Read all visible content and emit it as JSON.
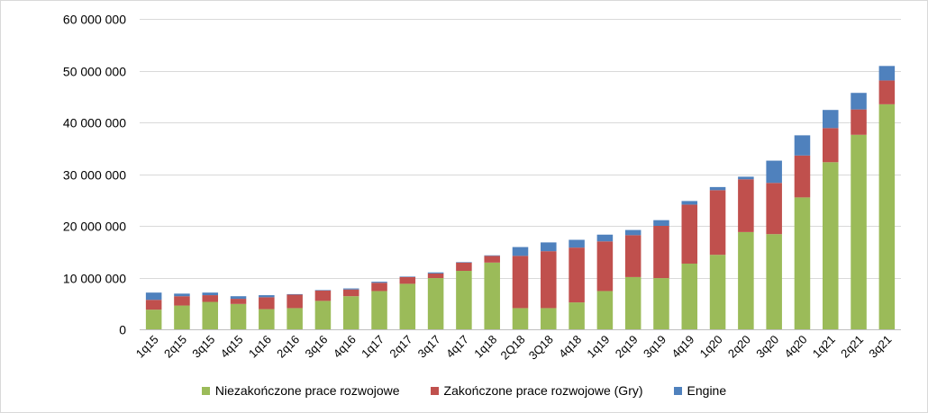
{
  "chart_data": {
    "type": "bar",
    "stacked": true,
    "title": "",
    "xlabel": "",
    "ylabel": "",
    "ylim": [
      0,
      60000000
    ],
    "yticks": [
      0,
      10000000,
      20000000,
      30000000,
      40000000,
      50000000,
      60000000
    ],
    "ytick_labels": [
      "0",
      "10 000 000",
      "20 000 000",
      "30 000 000",
      "40 000 000",
      "50 000 000",
      "60 000 000"
    ],
    "grid": true,
    "legend_position": "bottom",
    "categories": [
      "1q15",
      "2q15",
      "3q15",
      "4q15",
      "1q16",
      "2q16",
      "3q16",
      "4q16",
      "1q17",
      "2q17",
      "3q17",
      "4q17",
      "1q18",
      "2Q18",
      "3Q18",
      "4q18",
      "1q19",
      "2q19",
      "3q19",
      "4q19",
      "1q20",
      "2q20",
      "3q20",
      "4q20",
      "1q21",
      "2q21",
      "3q21"
    ],
    "series": [
      {
        "name": "Niezakończone prace rozwojowe",
        "color": "#9bbb59",
        "values": [
          3800000,
          4600000,
          5300000,
          4900000,
          3900000,
          4100000,
          5500000,
          6400000,
          7400000,
          8800000,
          9900000,
          11300000,
          12900000,
          4100000,
          4100000,
          5200000,
          7400000,
          10100000,
          9900000,
          12700000,
          14400000,
          18800000,
          18400000,
          25500000,
          32300000,
          37600000,
          43500000
        ]
      },
      {
        "name": "Zakończone prace rozwojowe (Gry)",
        "color": "#c0504d",
        "values": [
          1900000,
          1800000,
          1300000,
          1000000,
          2300000,
          2600000,
          2000000,
          1300000,
          1600000,
          1300000,
          900000,
          1600000,
          1300000,
          10100000,
          11000000,
          10600000,
          9600000,
          8100000,
          10100000,
          11400000,
          12500000,
          10200000,
          9900000,
          8100000,
          6600000,
          4900000,
          4600000
        ]
      },
      {
        "name": "Engine",
        "color": "#4f81bd",
        "values": [
          1400000,
          500000,
          500000,
          500000,
          400000,
          100000,
          100000,
          200000,
          200000,
          100000,
          200000,
          100000,
          100000,
          1700000,
          1700000,
          1500000,
          1300000,
          1000000,
          1100000,
          700000,
          600000,
          500000,
          4300000,
          3900000,
          3500000,
          3200000,
          2800000
        ]
      }
    ]
  }
}
